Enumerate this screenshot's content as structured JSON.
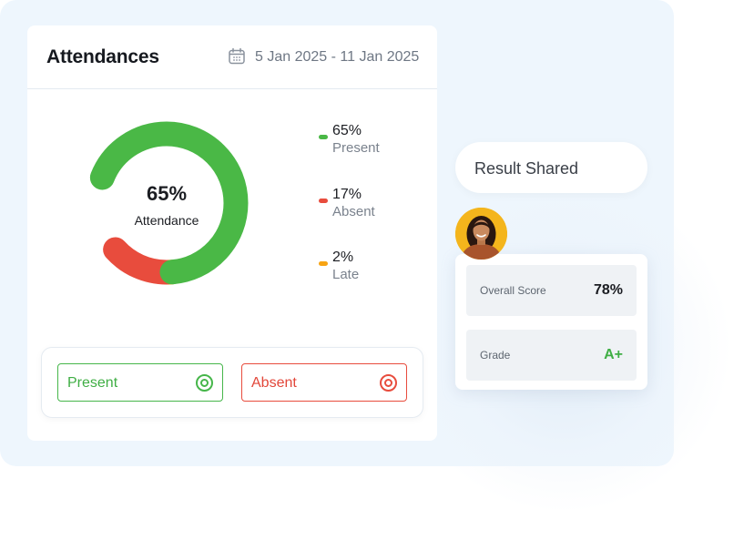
{
  "attendance_card": {
    "title": "Attendances",
    "date_range": "5 Jan 2025 - 11 Jan 2025",
    "calendar_icon": "calendar-icon",
    "center_value": "65%",
    "center_label": "Attendance",
    "segments": [
      {
        "name": "Present",
        "value": "65%",
        "percent": 65,
        "color": "#4ab846"
      },
      {
        "name": "Absent",
        "value": "17%",
        "percent": 17,
        "color": "#e84c3d"
      },
      {
        "name": "Late",
        "value": "2%",
        "percent": 2,
        "color": "#f7a413"
      }
    ],
    "buttons": {
      "present_label": "Present",
      "absent_label": "Absent",
      "present_icon": "target-icon",
      "absent_icon": "target-icon"
    }
  },
  "result": {
    "label": "Result Shared",
    "avatar_icon": "student-avatar",
    "overall_score_label": "Overall Score",
    "overall_score_value": "78%",
    "grade_label": "Grade",
    "grade_value": "A+"
  },
  "colors": {
    "present": "#4ab846",
    "absent": "#e84c3d",
    "late": "#f7a413",
    "panel_bg": "#eef6fd"
  }
}
